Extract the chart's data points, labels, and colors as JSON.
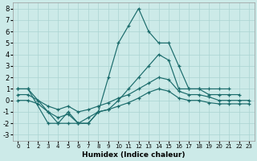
{
  "xlabel": "Humidex (Indice chaleur)",
  "bg_color": "#cceae8",
  "grid_color": "#aad4d2",
  "line_color": "#1a6b6b",
  "xlim": [
    -0.5,
    23.5
  ],
  "ylim": [
    -3.5,
    8.5
  ],
  "xticks": [
    0,
    1,
    2,
    3,
    4,
    5,
    6,
    7,
    8,
    9,
    10,
    11,
    12,
    13,
    14,
    15,
    16,
    17,
    18,
    19,
    20,
    21,
    22,
    23
  ],
  "yticks": [
    -3,
    -2,
    -1,
    0,
    1,
    2,
    3,
    4,
    5,
    6,
    7,
    8
  ],
  "line1_x": [
    0,
    1,
    3,
    4,
    5,
    6,
    7,
    8,
    9,
    10,
    11,
    12,
    13,
    14,
    15,
    16,
    17,
    18,
    19,
    20,
    21
  ],
  "line1_y": [
    1,
    1,
    -2,
    -2,
    -2,
    -2,
    -2,
    -1,
    2,
    5,
    6.5,
    8,
    6,
    5,
    5,
    3,
    1,
    1,
    1,
    1,
    1
  ],
  "line2_x": [
    0,
    1,
    2,
    3,
    4,
    5,
    6,
    7,
    8,
    9,
    10,
    11,
    12,
    13,
    14,
    15,
    16,
    17,
    18,
    19,
    20,
    21,
    22
  ],
  "line2_y": [
    1,
    1,
    0,
    -1,
    -2,
    -1,
    -2,
    -2,
    -1,
    -0.8,
    0,
    1,
    2,
    3,
    4,
    3.5,
    1,
    1,
    1,
    0.5,
    0.5,
    0.5,
    0.5
  ],
  "line3_x": [
    0,
    1,
    2,
    3,
    4,
    5,
    6,
    7,
    8,
    9,
    10,
    11,
    12,
    13,
    14,
    15,
    16,
    17,
    18,
    19,
    20,
    21,
    22,
    23
  ],
  "line3_y": [
    0.5,
    0.5,
    0.0,
    -0.5,
    -0.8,
    -0.5,
    -1.0,
    -0.8,
    -0.5,
    -0.2,
    0.2,
    0.5,
    1.0,
    1.5,
    2.0,
    1.8,
    0.8,
    0.5,
    0.5,
    0.3,
    0.0,
    0.0,
    0.0,
    0.0
  ],
  "line4_x": [
    0,
    1,
    2,
    3,
    4,
    5,
    6,
    7,
    8,
    9,
    10,
    11,
    12,
    13,
    14,
    15,
    16,
    17,
    18,
    19,
    20,
    21,
    22,
    23
  ],
  "line4_y": [
    0.0,
    0.0,
    -0.3,
    -1.0,
    -1.5,
    -1.2,
    -2.0,
    -1.5,
    -1.0,
    -0.8,
    -0.5,
    -0.2,
    0.2,
    0.7,
    1.0,
    0.8,
    0.2,
    0.0,
    0.0,
    -0.2,
    -0.3,
    -0.3,
    -0.3,
    -0.3
  ],
  "xlabel_fontsize": 6.5,
  "tick_fontsize_x": 5.0,
  "tick_fontsize_y": 6.0
}
